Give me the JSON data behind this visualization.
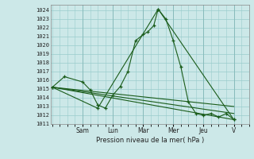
{
  "title": "",
  "xlabel": "Pression niveau de la mer( hPa )",
  "bg_color": "#cce8e8",
  "grid_color": "#99cccc",
  "line_color": "#1a5c1a",
  "day_labels": [
    "Sam",
    "Lun",
    "Mar",
    "Mer",
    "Jeu",
    "V"
  ],
  "day_positions": [
    2,
    4,
    6,
    8,
    10,
    12
  ],
  "ylim_min": 1011,
  "ylim_max": 1024.6,
  "xlim_min": -0.1,
  "xlim_max": 13.0,
  "yticks": [
    1011,
    1012,
    1013,
    1014,
    1015,
    1016,
    1017,
    1018,
    1019,
    1020,
    1021,
    1022,
    1023,
    1024
  ],
  "series0_x": [
    0,
    0.8,
    2,
    2.5,
    3.0,
    3.5,
    4.0,
    4.5,
    5.0,
    5.5,
    6.0,
    6.3,
    6.7,
    7.0,
    7.5,
    8.0,
    8.5,
    9.0,
    9.5,
    10.0,
    10.5,
    11.0,
    11.5,
    12.0
  ],
  "series0_y": [
    1015.2,
    1016.4,
    1015.8,
    1014.9,
    1013.2,
    1012.8,
    1014.3,
    1015.3,
    1017.0,
    1020.5,
    1021.2,
    1021.5,
    1022.2,
    1024.1,
    1023.0,
    1020.5,
    1017.5,
    1013.5,
    1012.2,
    1012.0,
    1012.2,
    1011.8,
    1012.2,
    1011.5
  ],
  "series1_x": [
    0,
    3.0,
    7.0,
    12.0
  ],
  "series1_y": [
    1015.2,
    1012.8,
    1024.1,
    1011.5
  ],
  "series2_x": [
    0,
    12.0
  ],
  "series2_y": [
    1015.2,
    1011.5
  ],
  "series3_x": [
    0,
    12.0
  ],
  "series3_y": [
    1015.2,
    1013.0
  ],
  "series4_x": [
    0,
    12.0
  ],
  "series4_y": [
    1015.2,
    1012.2
  ]
}
